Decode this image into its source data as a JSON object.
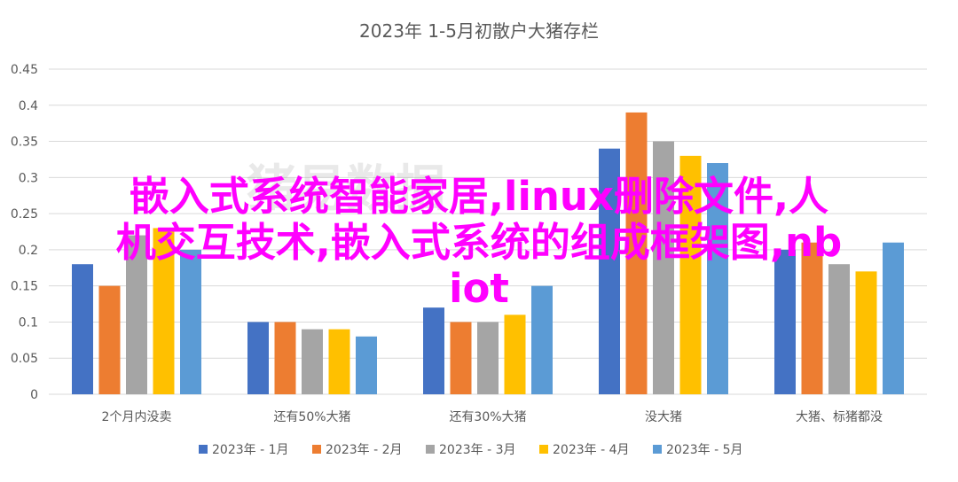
{
  "chart_data": {
    "type": "bar",
    "title": "2023年 1-5月初散户大猪存栏",
    "categories": [
      "2个月内没卖",
      "还有50%大猪",
      "还有30%大猪",
      "没大猪",
      "大猪、标猪都没"
    ],
    "series": [
      {
        "name": "2023年 - 1月",
        "color": "#4472c4",
        "values": [
          0.18,
          0.1,
          0.12,
          0.34,
          0.2
        ]
      },
      {
        "name": "2023年 - 2月",
        "color": "#ed7d31",
        "values": [
          0.15,
          0.1,
          0.1,
          0.39,
          0.21
        ]
      },
      {
        "name": "2023年 - 3月",
        "color": "#a5a5a5",
        "values": [
          0.22,
          0.09,
          0.1,
          0.35,
          0.18
        ]
      },
      {
        "name": "2023年 - 4月",
        "color": "#ffc000",
        "values": [
          0.23,
          0.09,
          0.11,
          0.33,
          0.17
        ]
      },
      {
        "name": "2023年 - 5月",
        "color": "#5b9bd5",
        "values": [
          0.2,
          0.08,
          0.15,
          0.32,
          0.21
        ]
      }
    ],
    "ylim": [
      0,
      0.45
    ],
    "yticks": [
      "0",
      "0.05",
      "0.1",
      "0.15",
      "0.2",
      "0.25",
      "0.3",
      "0.35",
      "0.4",
      "0.45"
    ],
    "grid": true,
    "legend": "bottom"
  },
  "overlay": {
    "line1": "嵌入式系统智能家居,linux删除文件,人",
    "line2": "机交互技术,嵌入式系统的组成框架图,nb",
    "line3": "iot",
    "color": "#ff00ff"
  },
  "watermark": "猪易数据"
}
